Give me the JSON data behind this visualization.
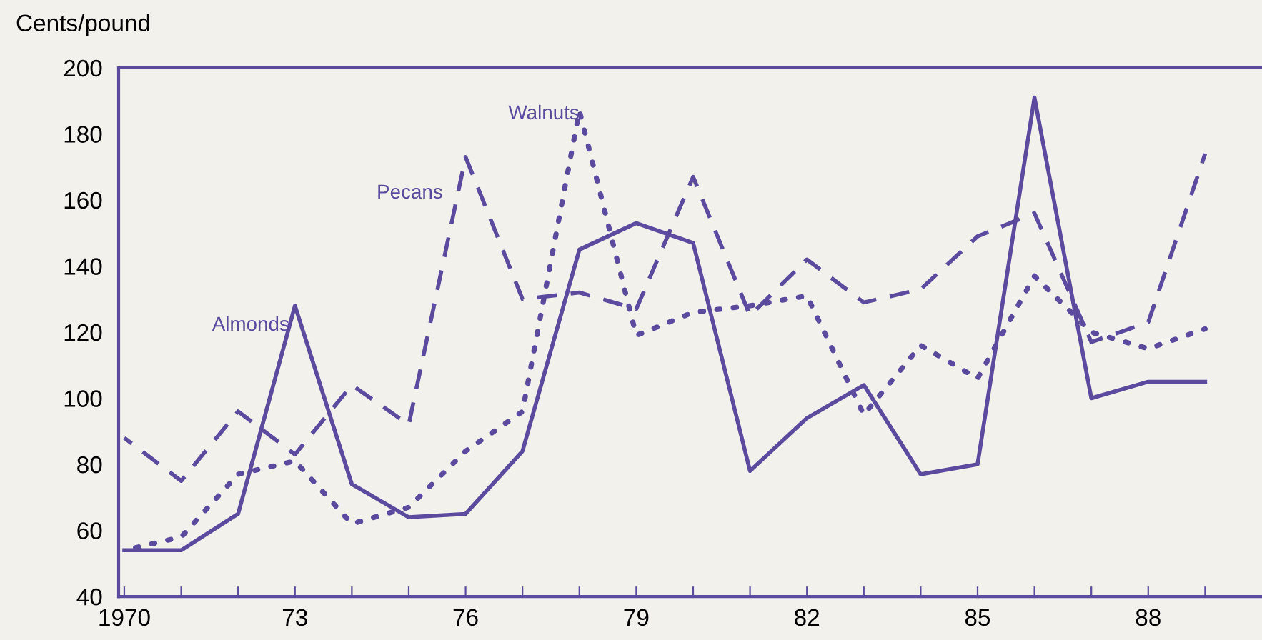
{
  "chart_data": {
    "type": "line",
    "ylabel": "Cents/pound",
    "x": [
      1970,
      1971,
      1972,
      1973,
      1974,
      1975,
      1976,
      1977,
      1978,
      1979,
      1980,
      1981,
      1982,
      1983,
      1984,
      1985,
      1986,
      1987,
      1988,
      1989
    ],
    "series": [
      {
        "name": "Almonds",
        "color": "#5b4a9e",
        "line_style": "solid",
        "values": [
          54,
          54,
          65,
          128,
          74,
          64,
          65,
          84,
          145,
          153,
          147,
          78,
          94,
          104,
          77,
          80,
          191,
          100,
          105,
          105
        ]
      },
      {
        "name": "Pecans",
        "color": "#5b4a9e",
        "line_style": "dashed",
        "values": [
          88,
          75,
          96,
          83,
          104,
          92,
          173,
          130,
          132,
          127,
          167,
          125,
          142,
          129,
          133,
          149,
          156,
          117,
          123,
          174
        ]
      },
      {
        "name": "Walnuts",
        "color": "#5b4a9e",
        "line_style": "dotted",
        "values": [
          54,
          58,
          77,
          81,
          62,
          67,
          84,
          96,
          187,
          119,
          126,
          128,
          131,
          95,
          116,
          106,
          137,
          120,
          115,
          121
        ]
      }
    ],
    "xlim": [
      1969.9,
      1990
    ],
    "ylim": [
      40,
      200
    ],
    "yticks": [
      40,
      60,
      80,
      100,
      120,
      140,
      160,
      180,
      200
    ],
    "xticks": [
      {
        "value": 1970,
        "label": "1970"
      },
      {
        "value": 1971,
        "label": null
      },
      {
        "value": 1972,
        "label": null
      },
      {
        "value": 1973,
        "label": "73"
      },
      {
        "value": 1974,
        "label": null
      },
      {
        "value": 1975,
        "label": null
      },
      {
        "value": 1976,
        "label": "76"
      },
      {
        "value": 1977,
        "label": null
      },
      {
        "value": 1978,
        "label": null
      },
      {
        "value": 1979,
        "label": "79"
      },
      {
        "value": 1980,
        "label": null
      },
      {
        "value": 1981,
        "label": null
      },
      {
        "value": 1982,
        "label": "82"
      },
      {
        "value": 1983,
        "label": null
      },
      {
        "value": 1984,
        "label": null
      },
      {
        "value": 1985,
        "label": "85"
      },
      {
        "value": 1986,
        "label": null
      },
      {
        "value": 1987,
        "label": null
      },
      {
        "value": 1988,
        "label": "88"
      },
      {
        "value": 1989,
        "label": null
      }
    ],
    "grid": false,
    "legend": false,
    "marker": "none"
  }
}
